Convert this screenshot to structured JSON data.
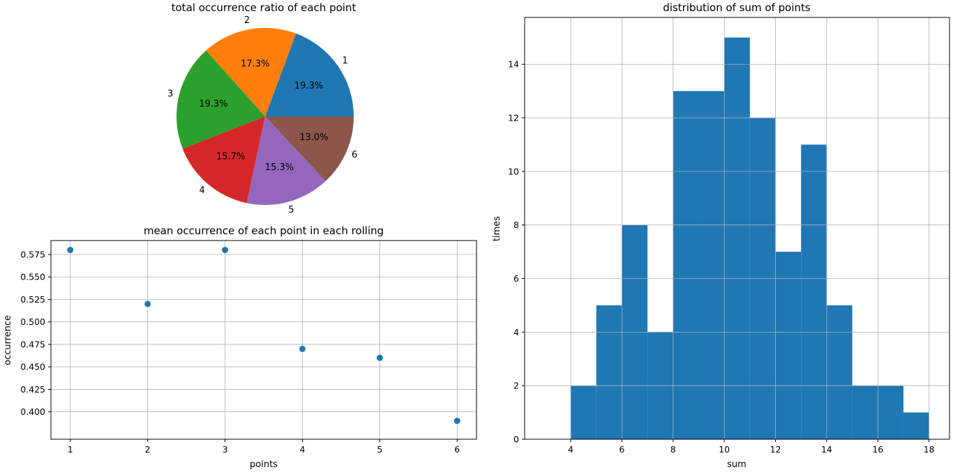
{
  "chart_data": [
    {
      "type": "pie",
      "title": "total occurrence ratio of each point",
      "labels": [
        "1",
        "2",
        "3",
        "4",
        "5",
        "6"
      ],
      "values": [
        19.3,
        17.3,
        19.3,
        15.7,
        15.3,
        13.0
      ],
      "value_labels": [
        "19.3%",
        "17.3%",
        "19.3%",
        "15.7%",
        "15.3%",
        "13.0%"
      ],
      "colors": [
        "#1f77b4",
        "#ff7f0e",
        "#2ca02c",
        "#d62728",
        "#9467bd",
        "#8c564b"
      ],
      "start_angle_deg": 0,
      "direction": "counterclockwise"
    },
    {
      "type": "scatter",
      "title": "mean occurrence of each point in each rolling",
      "xlabel": "points",
      "ylabel": "occurrence",
      "x": [
        1,
        2,
        3,
        4,
        5,
        6
      ],
      "y": [
        0.58,
        0.52,
        0.58,
        0.47,
        0.46,
        0.39
      ],
      "xlim": [
        0.75,
        6.25
      ],
      "ylim": [
        0.3695,
        0.5905
      ],
      "xticks": [
        1,
        2,
        3,
        4,
        5,
        6
      ],
      "yticks": [
        0.4,
        0.425,
        0.45,
        0.475,
        0.5,
        0.525,
        0.55,
        0.575
      ],
      "ytick_labels": [
        "0.400",
        "0.425",
        "0.450",
        "0.475",
        "0.500",
        "0.525",
        "0.550",
        "0.575"
      ],
      "color": "#1f77b4",
      "grid": true
    },
    {
      "type": "bar",
      "subtype": "histogram",
      "title": "distribution of sum of points",
      "xlabel": "sum",
      "ylabel": "times",
      "bin_edges": [
        4,
        5,
        6,
        7,
        8,
        9,
        10,
        11,
        12,
        13,
        14,
        15,
        16,
        17,
        18
      ],
      "values": [
        2,
        5,
        8,
        4,
        13,
        13,
        15,
        12,
        7,
        11,
        5,
        2,
        2,
        1
      ],
      "xlim": [
        2.2,
        18.8
      ],
      "ylim": [
        0,
        15.75
      ],
      "xticks": [
        4,
        6,
        8,
        10,
        12,
        14,
        16,
        18
      ],
      "yticks": [
        0,
        2,
        4,
        6,
        8,
        10,
        12,
        14
      ],
      "color": "#1f77b4",
      "grid": true
    }
  ]
}
